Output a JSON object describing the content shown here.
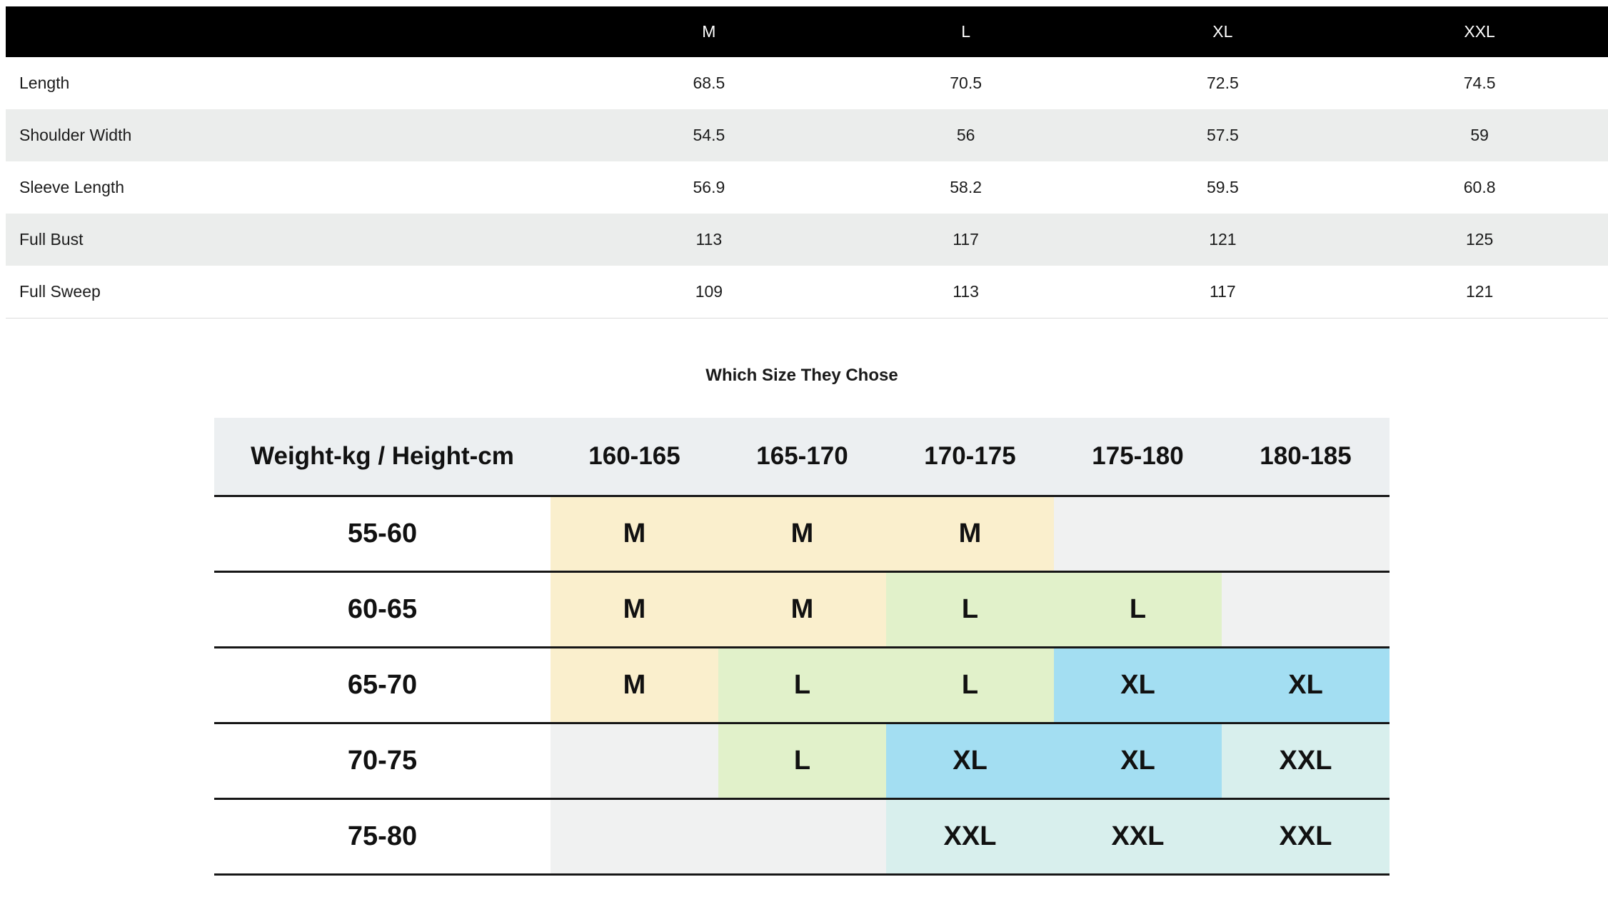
{
  "size_chart": {
    "columns": [
      "M",
      "L",
      "XL",
      "XXL"
    ],
    "rows": [
      {
        "label": "Length",
        "values": [
          "68.5",
          "70.5",
          "72.5",
          "74.5"
        ]
      },
      {
        "label": "Shoulder Width",
        "values": [
          "54.5",
          "56",
          "57.5",
          "59"
        ]
      },
      {
        "label": "Sleeve Length",
        "values": [
          "56.9",
          "58.2",
          "59.5",
          "60.8"
        ]
      },
      {
        "label": "Full Bust",
        "values": [
          "113",
          "117",
          "121",
          "125"
        ]
      },
      {
        "label": "Full Sweep",
        "values": [
          "109",
          "113",
          "117",
          "121"
        ]
      }
    ]
  },
  "size_matrix": {
    "title": "Which Size They Chose",
    "corner_label": "Weight-kg / Height-cm",
    "height_columns": [
      "160-165",
      "165-170",
      "170-175",
      "175-180",
      "180-185"
    ],
    "rows": [
      {
        "weight": "55-60",
        "cells": [
          "M",
          "M",
          "M",
          "",
          ""
        ]
      },
      {
        "weight": "60-65",
        "cells": [
          "M",
          "M",
          "L",
          "L",
          ""
        ]
      },
      {
        "weight": "65-70",
        "cells": [
          "M",
          "L",
          "L",
          "XL",
          "XL"
        ]
      },
      {
        "weight": "70-75",
        "cells": [
          "",
          "L",
          "XL",
          "XL",
          "XXL"
        ]
      },
      {
        "weight": "75-80",
        "cells": [
          "",
          "",
          "XXL",
          "XXL",
          "XXL"
        ]
      }
    ],
    "colors": {
      "M": "#faefcd",
      "L": "#e1f1ca",
      "XL": "#a3def2",
      "XXL": "#d8efed",
      "empty": "#f0f1f1"
    }
  }
}
